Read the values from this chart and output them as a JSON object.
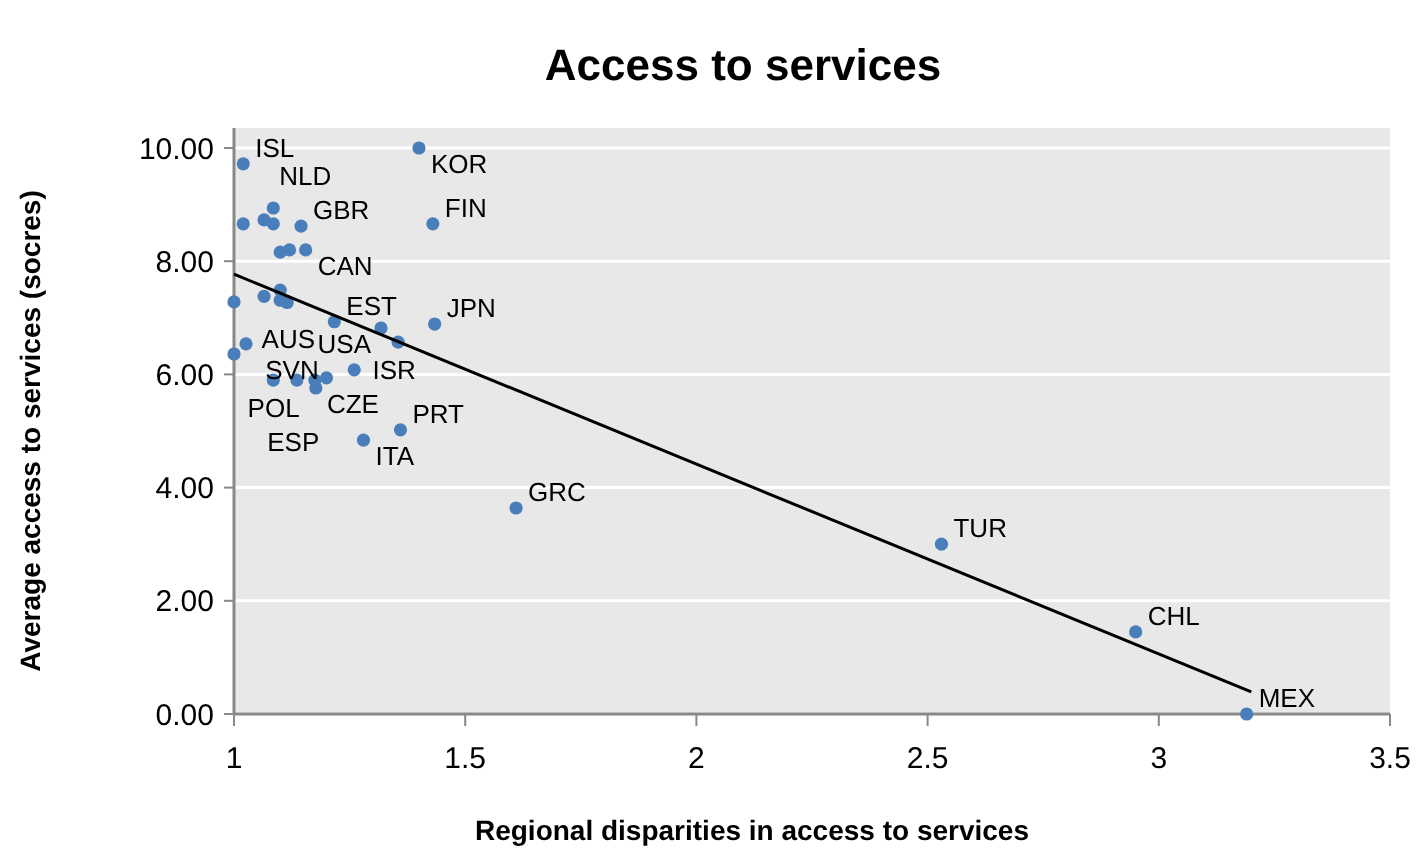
{
  "chart_data": {
    "type": "scatter",
    "title": "Access to services",
    "xlabel": "Regional disparities in access to services",
    "ylabel": "Average access  to services  (socres)",
    "xlim": [
      1,
      3.5
    ],
    "xticks": [
      1,
      1.5,
      2,
      2.5,
      3,
      3.5
    ],
    "ylim": [
      0,
      10
    ],
    "yticks": [
      {
        "value": 0,
        "label": "0.00"
      },
      {
        "value": 2,
        "label": "2.00"
      },
      {
        "value": 4,
        "label": "4.00"
      },
      {
        "value": 6,
        "label": "6.00"
      },
      {
        "value": 8,
        "label": "8.00"
      },
      {
        "value": 10,
        "label": "10.00"
      }
    ],
    "grid": "y",
    "marker": "circle",
    "series": [
      {
        "color": "#4a7ebb",
        "x": [
          1.02,
          1.4,
          1.02,
          1.065,
          1.085,
          1.085,
          1.145,
          1.43,
          1.1,
          1.12,
          1.155,
          1.0,
          1.065,
          1.1,
          1.1,
          1.115,
          1.217,
          1.318,
          1.355,
          1.434,
          1.0,
          1.026,
          1.085,
          1.136,
          1.175,
          1.177,
          1.2,
          1.26,
          1.36,
          1.28,
          1.61,
          2.53,
          2.95,
          3.19
        ],
        "values": [
          9.72,
          10.0,
          8.66,
          8.73,
          8.94,
          8.66,
          8.62,
          8.66,
          8.16,
          8.2,
          8.2,
          7.28,
          7.38,
          7.49,
          7.31,
          7.27,
          6.93,
          6.82,
          6.57,
          6.89,
          6.36,
          6.54,
          5.9,
          5.9,
          5.9,
          5.76,
          5.94,
          6.08,
          5.02,
          4.84,
          3.64,
          3.0,
          1.45,
          0.0
        ]
      },
      {
        "type": "line",
        "marker": "none",
        "color": "#000000",
        "x": [
          1.0,
          3.2
        ],
        "values": [
          7.77,
          0.39
        ]
      }
    ],
    "annotations": [
      {
        "text": "ISL",
        "x": 1.02,
        "y": 9.72
      },
      {
        "text": "KOR",
        "x": 1.4,
        "y": 10.0
      },
      {
        "text": "NLD",
        "x": 1.02,
        "y": 8.66
      },
      {
        "text": "GBR",
        "x": 1.145,
        "y": 8.62
      },
      {
        "text": "FIN",
        "x": 1.43,
        "y": 8.66
      },
      {
        "text": "CAN",
        "x": 1.155,
        "y": 8.2
      },
      {
        "text": "AUS",
        "x": 1.0,
        "y": 7.28
      },
      {
        "text": "EST",
        "x": 1.217,
        "y": 6.93
      },
      {
        "text": "USA",
        "x": 1.318,
        "y": 6.82
      },
      {
        "text": "JPN",
        "x": 1.434,
        "y": 6.89
      },
      {
        "text": "ISR",
        "x": 1.355,
        "y": 6.57
      },
      {
        "text": "SVN",
        "x": 1.026,
        "y": 6.54
      },
      {
        "text": "POL",
        "x": 1.085,
        "y": 5.9
      },
      {
        "text": "CZE",
        "x": 1.175,
        "y": 5.76
      },
      {
        "text": "ESP",
        "x": 1.2,
        "y": 5.94
      },
      {
        "text": "PRT",
        "x": 1.36,
        "y": 5.02
      },
      {
        "text": "ITA",
        "x": 1.28,
        "y": 4.84
      },
      {
        "text": "GRC",
        "x": 1.61,
        "y": 3.64
      },
      {
        "text": "TUR",
        "x": 2.53,
        "y": 3.0
      },
      {
        "text": "CHL",
        "x": 2.95,
        "y": 1.45
      },
      {
        "text": "MEX",
        "x": 3.19,
        "y": 0.0
      }
    ]
  }
}
